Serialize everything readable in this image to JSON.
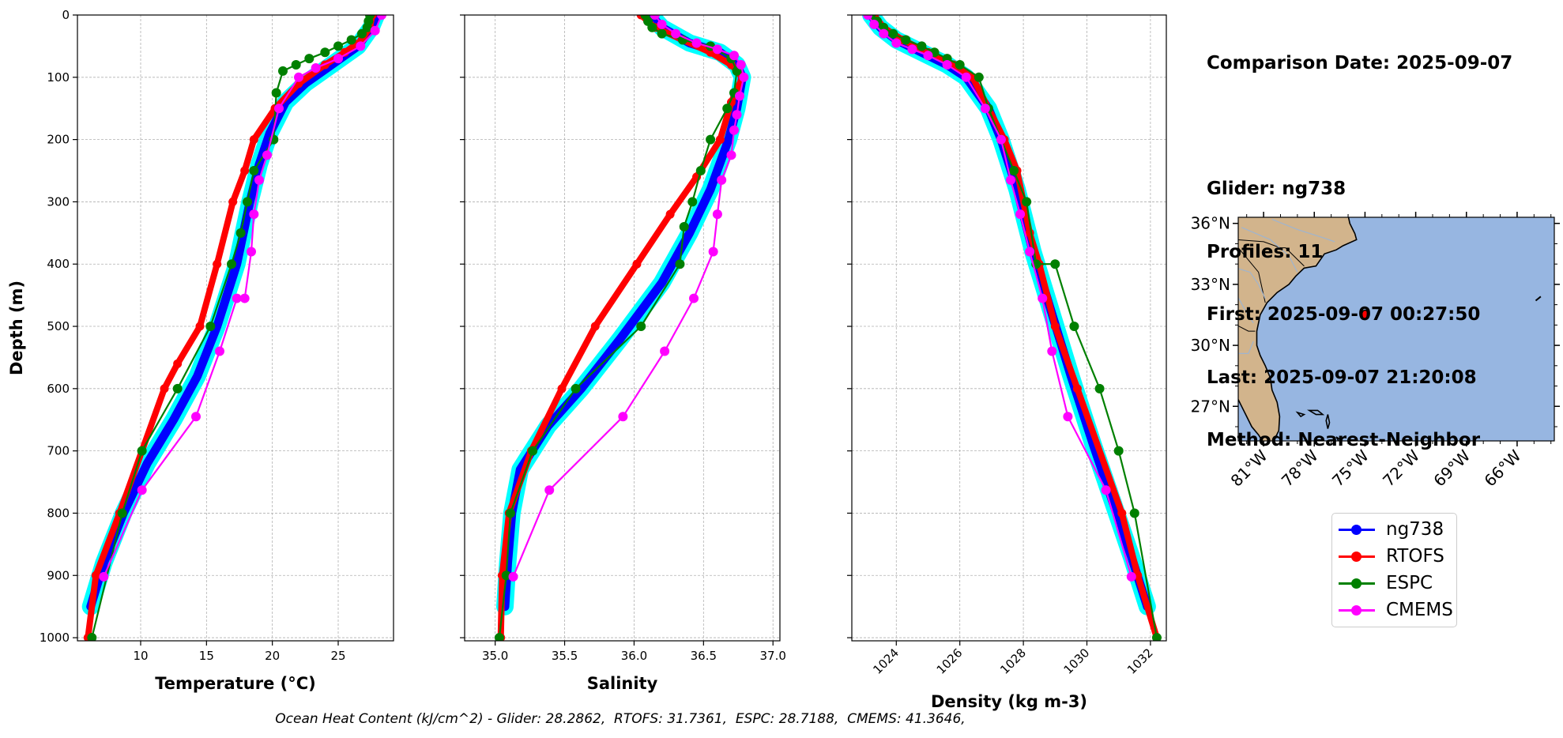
{
  "info": {
    "comparison_date": "Comparison Date: 2025-09-07",
    "glider": "Glider: ng738",
    "profiles": "Profiles: 11",
    "first": "First: 2025-09-07 00:27:50",
    "last": "Last: 2025-09-07 21:20:08",
    "method": "Method: Nearest-Neighbor"
  },
  "footer": "Ocean Heat Content (kJ/cm^2) - Glider: 28.2862,  RTOFS: 31.7361,  ESPC: 28.7188,  CMEMS: 41.3646,",
  "legend": [
    {
      "name": "ng738",
      "color": "#0000ff"
    },
    {
      "name": "RTOFS",
      "color": "#ff0000"
    },
    {
      "name": "ESPC",
      "color": "#008000"
    },
    {
      "name": "CMEMS",
      "color": "#ff00ff"
    }
  ],
  "chart_data": [
    {
      "type": "line",
      "xlabel": "Temperature (°C)",
      "ylabel": "Depth (m)",
      "xlim": [
        5.2,
        29.2
      ],
      "ylim": [
        1005,
        0
      ],
      "xticks": [
        10,
        15,
        20,
        25
      ],
      "yticks": [
        0,
        100,
        200,
        300,
        400,
        500,
        600,
        700,
        800,
        900,
        1000
      ],
      "grid": true,
      "series": [
        {
          "name": "ng738",
          "color": "#0000ff",
          "shading_color": "#00ffff",
          "x": [
            27.9,
            27.5,
            26.5,
            24.5,
            22.5,
            21.0,
            19.8,
            19.0,
            18.3,
            17.3,
            15.8,
            14.3,
            12.5,
            10.5,
            8.7,
            7.2,
            6.2
          ],
          "y": [
            0,
            20,
            50,
            80,
            110,
            140,
            190,
            240,
            300,
            400,
            500,
            580,
            650,
            720,
            800,
            880,
            950
          ]
        },
        {
          "name": "RTOFS",
          "color": "#ff0000",
          "x": [
            27.6,
            27.4,
            26.8,
            25.5,
            24.0,
            22.0,
            20.2,
            18.6,
            17.9,
            17.0,
            15.8,
            14.5,
            12.8,
            11.8,
            8.4,
            6.6,
            6.0
          ],
          "y": [
            0,
            20,
            40,
            60,
            80,
            110,
            150,
            200,
            250,
            300,
            400,
            500,
            560,
            600,
            800,
            900,
            1000
          ]
        },
        {
          "name": "ESPC",
          "color": "#008000",
          "markers": true,
          "x": [
            27.4,
            27.3,
            27.2,
            26.8,
            26.0,
            25.0,
            24.0,
            22.8,
            21.8,
            20.8,
            20.3,
            20.1,
            18.6,
            18.1,
            17.6,
            16.9,
            15.3,
            12.8,
            10.1,
            8.6,
            6.3
          ],
          "y": [
            0,
            10,
            20,
            30,
            40,
            50,
            60,
            70,
            80,
            90,
            125,
            200,
            250,
            300,
            350,
            400,
            500,
            600,
            700,
            800,
            1000
          ]
        },
        {
          "name": "CMEMS",
          "color": "#ff00ff",
          "markers": true,
          "x": [
            28.3,
            27.8,
            26.7,
            25.0,
            23.3,
            22.0,
            20.5,
            19.6,
            19.0,
            18.6,
            18.4,
            17.9,
            17.3,
            16.0,
            14.2,
            10.1,
            7.2
          ],
          "y": [
            0,
            25,
            50,
            70,
            85,
            100,
            150,
            225,
            265,
            320,
            380,
            455,
            455,
            540,
            645,
            763,
            902
          ]
        }
      ]
    },
    {
      "type": "line",
      "xlabel": "Salinity",
      "ylabel": "",
      "xlim": [
        34.78,
        37.05
      ],
      "ylim": [
        1005,
        0
      ],
      "xticks": [
        35.0,
        35.5,
        36.0,
        36.5,
        37.0
      ],
      "grid": true,
      "series": [
        {
          "name": "ng738",
          "color": "#0000ff",
          "shading_color": "#00ffff",
          "x": [
            36.12,
            36.2,
            36.4,
            36.62,
            36.74,
            36.78,
            36.74,
            36.68,
            36.55,
            36.4,
            36.2,
            35.9,
            35.62,
            35.38,
            35.18,
            35.12,
            35.09,
            35.07
          ],
          "y": [
            0,
            20,
            45,
            60,
            80,
            100,
            150,
            200,
            280,
            350,
            430,
            520,
            600,
            660,
            730,
            800,
            880,
            950
          ]
        },
        {
          "name": "RTOFS",
          "color": "#ff0000",
          "x": [
            36.05,
            36.15,
            36.35,
            36.55,
            36.7,
            36.78,
            36.7,
            36.62,
            36.45,
            36.26,
            36.02,
            35.72,
            35.48,
            35.26,
            35.1,
            35.05,
            35.04
          ],
          "y": [
            0,
            20,
            40,
            60,
            80,
            100,
            140,
            200,
            260,
            320,
            400,
            500,
            600,
            700,
            800,
            900,
            1000
          ]
        },
        {
          "name": "ESPC",
          "color": "#008000",
          "markers": true,
          "x": [
            36.08,
            36.1,
            36.13,
            36.2,
            36.35,
            36.55,
            36.7,
            36.74,
            36.72,
            36.67,
            36.55,
            36.48,
            36.42,
            36.36,
            36.33,
            36.05,
            35.58,
            35.27,
            35.11,
            35.08,
            35.03
          ],
          "y": [
            0,
            10,
            20,
            30,
            40,
            50,
            70,
            90,
            125,
            150,
            200,
            250,
            300,
            340,
            400,
            500,
            600,
            700,
            800,
            900,
            1000
          ]
        },
        {
          "name": "CMEMS",
          "color": "#ff00ff",
          "markers": true,
          "x": [
            36.15,
            36.2,
            36.3,
            36.45,
            36.6,
            36.72,
            36.77,
            36.79,
            36.76,
            36.74,
            36.72,
            36.7,
            36.63,
            36.6,
            36.57,
            36.43,
            36.22,
            35.92,
            35.39,
            35.13
          ],
          "y": [
            0,
            15,
            30,
            45,
            55,
            65,
            80,
            100,
            130,
            160,
            185,
            225,
            265,
            320,
            380,
            455,
            540,
            645,
            763,
            902
          ]
        }
      ]
    },
    {
      "type": "line",
      "xlabel": "Density (kg m-3)",
      "ylabel": "",
      "xlim": [
        1022.6,
        1032.5
      ],
      "ylim": [
        1005,
        0
      ],
      "xticks": [
        1024,
        1026,
        1028,
        1030,
        1032
      ],
      "grid": true,
      "series": [
        {
          "name": "ng738",
          "color": "#0000ff",
          "shading_color": "#00ffff",
          "x": [
            1023.2,
            1023.5,
            1024.0,
            1024.8,
            1025.6,
            1026.2,
            1026.9,
            1027.3,
            1027.8,
            1028.3,
            1028.9,
            1029.5,
            1030.2,
            1030.8,
            1031.4,
            1031.9
          ],
          "y": [
            0,
            20,
            40,
            60,
            80,
            100,
            150,
            200,
            280,
            380,
            480,
            580,
            690,
            780,
            870,
            950
          ]
        },
        {
          "name": "RTOFS",
          "color": "#ff0000",
          "x": [
            1023.3,
            1023.6,
            1024.2,
            1025.0,
            1025.8,
            1026.4,
            1026.9,
            1027.4,
            1027.8,
            1028.2,
            1028.5,
            1029.0,
            1029.7,
            1031.1,
            1031.6,
            1032.2
          ],
          "y": [
            0,
            20,
            40,
            60,
            80,
            100,
            150,
            200,
            250,
            350,
            400,
            500,
            600,
            800,
            900,
            1000
          ]
        },
        {
          "name": "ESPC",
          "color": "#008000",
          "markers": true,
          "x": [
            1023.2,
            1023.4,
            1023.6,
            1023.9,
            1024.3,
            1024.8,
            1025.2,
            1025.6,
            1026.0,
            1026.6,
            1026.9,
            1027.3,
            1027.7,
            1028.1,
            1028.4,
            1029.0,
            1029.6,
            1030.4,
            1031.0,
            1031.5,
            1032.2
          ],
          "y": [
            0,
            10,
            20,
            30,
            40,
            50,
            60,
            70,
            80,
            100,
            150,
            200,
            250,
            300,
            400,
            400,
            500,
            600,
            700,
            800,
            1000
          ]
        },
        {
          "name": "CMEMS",
          "color": "#ff00ff",
          "markers": true,
          "x": [
            1023.1,
            1023.3,
            1023.6,
            1024.0,
            1024.5,
            1025.0,
            1025.6,
            1026.2,
            1026.8,
            1027.3,
            1027.6,
            1027.9,
            1028.2,
            1028.6,
            1028.9,
            1029.4,
            1030.6,
            1031.4
          ],
          "y": [
            0,
            15,
            30,
            45,
            55,
            65,
            80,
            100,
            150,
            200,
            265,
            320,
            380,
            455,
            540,
            645,
            763,
            902
          ]
        }
      ]
    },
    {
      "type": "map",
      "lat_ticks": [
        "36°N",
        "33°N",
        "30°N",
        "27°N"
      ],
      "lon_ticks": [
        "81°W",
        "78°W",
        "75°W",
        "72°W",
        "69°W",
        "66°W"
      ],
      "lat_range": [
        25.3,
        36.3
      ],
      "lon_range": [
        -82.5,
        -63.8
      ],
      "land_color": "#d2b48c",
      "ocean_color": "#97b6e1",
      "glider_position": {
        "lat": 31.5,
        "lon": -75.0,
        "color": "#ff0000"
      }
    }
  ]
}
